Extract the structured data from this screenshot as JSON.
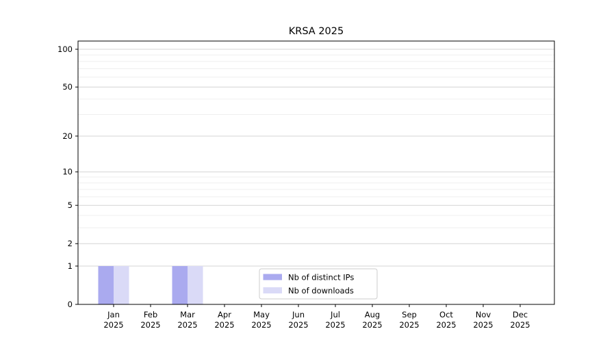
{
  "figure": {
    "background": "#ffffff"
  },
  "chart_data": {
    "type": "bar",
    "title": "KRSA 2025",
    "xlabel": "",
    "ylabel": "",
    "yscale": "log1p",
    "ylim": [
      0,
      115
    ],
    "grid": true,
    "categories": [
      "Jan",
      "Feb",
      "Mar",
      "Apr",
      "May",
      "Jun",
      "Jul",
      "Aug",
      "Sep",
      "Oct",
      "Nov",
      "Dec"
    ],
    "category_year_labels": [
      "2025",
      "2025",
      "2025",
      "2025",
      "2025",
      "2025",
      "2025",
      "2025",
      "2025",
      "2025",
      "2025",
      "2025"
    ],
    "series": [
      {
        "name": "Nb of distinct IPs",
        "color": "#aaaaef",
        "values": [
          1,
          0,
          1,
          0,
          0,
          0,
          0,
          0,
          0,
          0,
          0,
          0
        ]
      },
      {
        "name": "Nb of downloads",
        "color": "#dadaf7",
        "values": [
          1,
          0,
          1,
          0,
          0,
          0,
          0,
          0,
          0,
          0,
          0,
          0
        ]
      }
    ],
    "yticks": [
      0,
      1,
      2,
      5,
      10,
      20,
      50,
      100
    ],
    "minor_yticks": [
      3,
      4,
      6,
      7,
      8,
      9,
      30,
      40,
      60,
      70,
      80,
      90
    ],
    "legend": {
      "location": "lower-center-inside",
      "entries": [
        "Nb of distinct IPs",
        "Nb of downloads"
      ]
    },
    "colors": {
      "axis": "#000000",
      "major_grid": "#d4d4d4",
      "minor_grid": "#efefef",
      "legend_border": "#cccccc",
      "legend_background": "#ffffff",
      "tick_label": "#000000"
    }
  }
}
